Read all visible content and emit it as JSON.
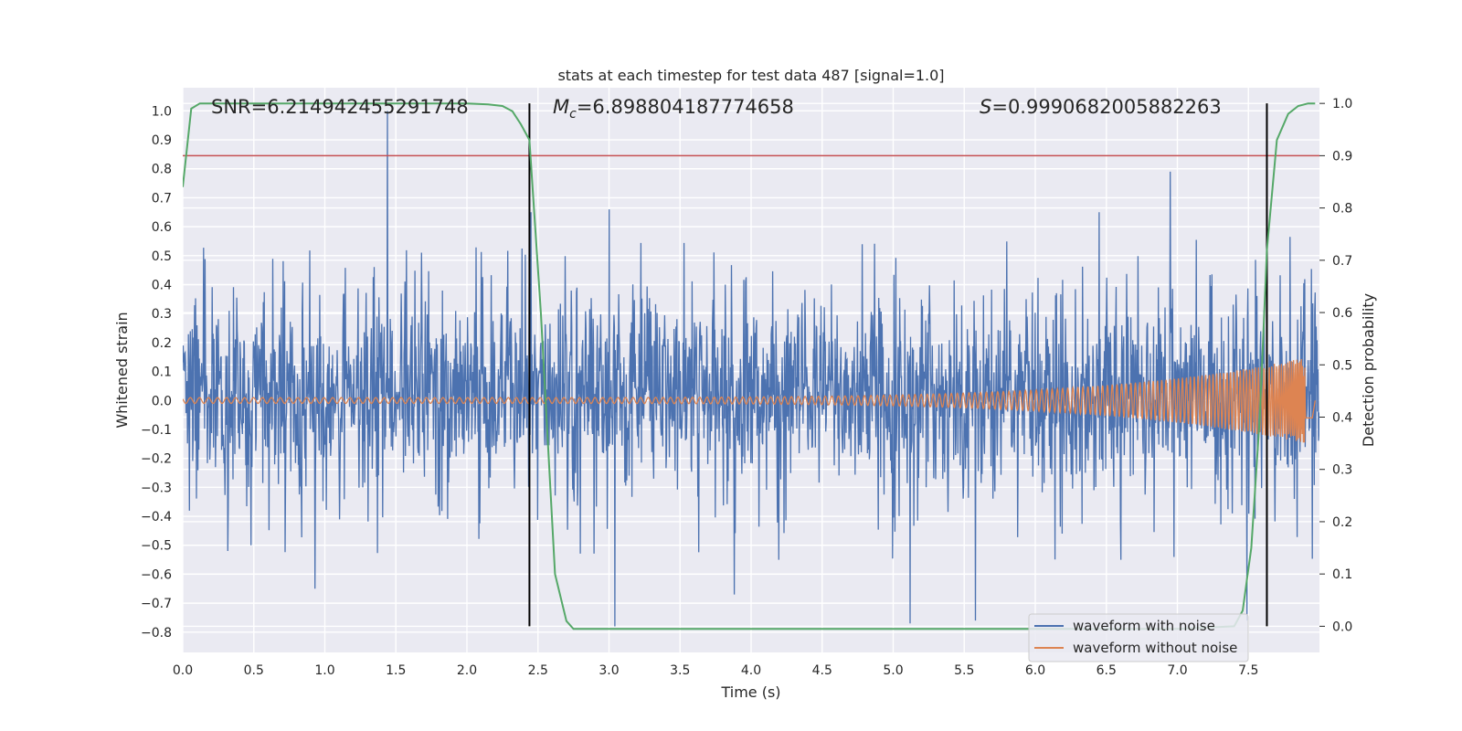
{
  "chart_data": {
    "type": "line",
    "title": "stats at each timestep for test data 487 [signal=1.0]",
    "xlabel": "Time (s)",
    "ylabel_left": "Whitened strain",
    "ylabel_right": "Detection probability",
    "xlim": [
      0.0,
      8.0
    ],
    "ylim_left": [
      -0.87,
      1.08
    ],
    "ylim_right": [
      -0.05,
      1.03
    ],
    "xticks": [
      "0.0",
      "0.5",
      "1.0",
      "1.5",
      "2.0",
      "2.5",
      "3.0",
      "3.5",
      "4.0",
      "4.5",
      "5.0",
      "5.5",
      "6.0",
      "6.5",
      "7.0",
      "7.5"
    ],
    "yticks_left": [
      "1.0",
      "0.9",
      "0.8",
      "0.7",
      "0.6",
      "0.5",
      "0.4",
      "0.3",
      "0.2",
      "0.1",
      "0.0",
      "−0.1",
      "−0.2",
      "−0.3",
      "−0.4",
      "−0.5",
      "−0.6",
      "−0.7",
      "−0.8"
    ],
    "yticks_right": [
      "1.0",
      "0.9",
      "0.8",
      "0.7",
      "0.6",
      "0.5",
      "0.4",
      "0.3",
      "0.2",
      "0.1",
      "0.0"
    ],
    "annotations": {
      "snr": "SNR=6.214942455291748",
      "mc_symbol": "M",
      "mc_sub": "c",
      "mc_value": "=6.898804187774658",
      "s_symbol": "S",
      "s_value": "=0.9990682005882263"
    },
    "threshold_right": 0.9,
    "vertical_lines_x": [
      2.44,
      7.63
    ],
    "noise_waveform": {
      "name": "waveform with noise",
      "color": "#4c72b0",
      "typical_range": [
        -0.35,
        0.4
      ],
      "notable_peaks": [
        {
          "x": 1.44,
          "y": 1.0
        },
        {
          "x": 6.95,
          "y": 0.79
        },
        {
          "x": 3.04,
          "y": -0.78
        },
        {
          "x": 5.12,
          "y": -0.77
        },
        {
          "x": 5.58,
          "y": -0.76
        },
        {
          "x": 7.49,
          "y": -0.76
        },
        {
          "x": 0.93,
          "y": -0.65
        },
        {
          "x": 3.88,
          "y": -0.67
        },
        {
          "x": 3.0,
          "y": 0.66
        },
        {
          "x": 6.45,
          "y": 0.65
        },
        {
          "x": 2.45,
          "y": 0.65
        }
      ]
    },
    "clean_waveform": {
      "name": "waveform without noise",
      "color": "#dd8452",
      "amplitude_start": 0.01,
      "amplitude_end": 0.15,
      "end_x": 7.95
    },
    "detection_probability": {
      "color": "#55a868",
      "x": [
        0.0,
        0.06,
        0.12,
        0.2,
        0.4,
        1.0,
        1.5,
        2.0,
        2.15,
        2.25,
        2.32,
        2.38,
        2.44,
        2.52,
        2.62,
        2.7,
        2.75,
        2.82,
        3.0,
        4.0,
        5.0,
        6.0,
        7.0,
        7.4,
        7.46,
        7.52,
        7.58,
        7.63,
        7.7,
        7.78,
        7.85,
        7.92,
        7.97
      ],
      "y": [
        0.84,
        0.99,
        1.0,
        1.0,
        1.0,
        1.0,
        1.0,
        1.0,
        0.998,
        0.995,
        0.985,
        0.96,
        0.93,
        0.6,
        0.1,
        0.01,
        -0.005,
        -0.005,
        -0.005,
        -0.005,
        -0.005,
        -0.005,
        -0.005,
        0.0,
        0.03,
        0.15,
        0.4,
        0.72,
        0.93,
        0.98,
        0.995,
        1.0,
        1.0
      ]
    },
    "threshold_color": "#c44e52",
    "legend": [
      "waveform with noise",
      "waveform without noise"
    ],
    "legend_placement": "lower-right",
    "grid": true
  }
}
